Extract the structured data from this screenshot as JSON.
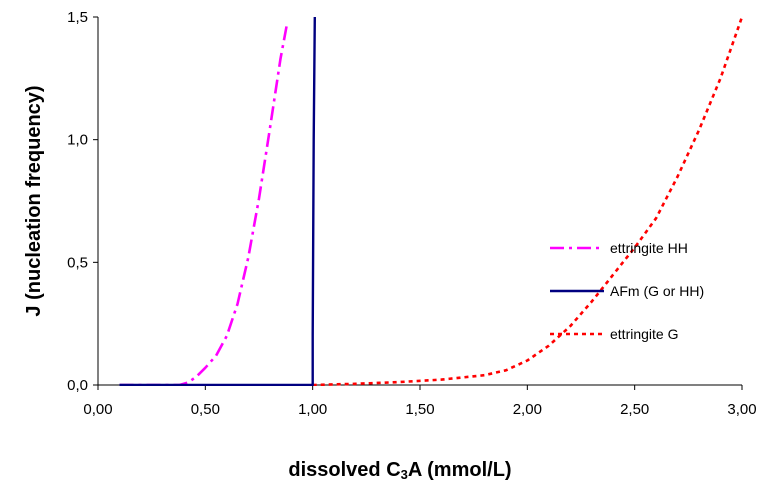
{
  "chart_data": {
    "type": "line",
    "title": "",
    "xlabel_parts": [
      "dissolved C",
      "3",
      "A (mmol/L)"
    ],
    "ylabel": "J (nucleation frequency)",
    "xlim": [
      0,
      3
    ],
    "ylim": [
      0,
      1.5
    ],
    "x_ticks": [
      0,
      0.5,
      1,
      1.5,
      2,
      2.5,
      3
    ],
    "x_tick_labels": [
      "0,00",
      "0,50",
      "1,00",
      "1,50",
      "2,00",
      "2,50",
      "3,00"
    ],
    "y_ticks": [
      0,
      0.5,
      1,
      1.5
    ],
    "y_tick_labels": [
      "0,0",
      "0,5",
      "1,0",
      "1,5"
    ],
    "grid": false,
    "legend_position": "right",
    "series": [
      {
        "name": "ettringite HH",
        "color": "#ff00ff",
        "dash": "dashdot",
        "x": [
          0.1,
          0.2,
          0.3,
          0.38,
          0.42,
          0.46,
          0.5,
          0.55,
          0.6,
          0.65,
          0.7,
          0.75,
          0.8,
          0.85,
          0.88
        ],
        "y": [
          0,
          0,
          0,
          0,
          0.01,
          0.035,
          0.07,
          0.12,
          0.2,
          0.33,
          0.52,
          0.76,
          1.04,
          1.33,
          1.47
        ]
      },
      {
        "name": "AFm (G or HH)",
        "color": "#000080",
        "dash": "solid",
        "x": [
          0.1,
          0.5,
          0.995,
          1.0,
          1.0,
          1.005,
          1.01
        ],
        "y": [
          0,
          0,
          0,
          0,
          0.2,
          1.0,
          1.5
        ]
      },
      {
        "name": "ettringite G",
        "color": "#ff0000",
        "dash": "dot",
        "x": [
          1.0,
          1.2,
          1.4,
          1.6,
          1.8,
          1.9,
          2.0,
          2.1,
          2.2,
          2.3,
          2.4,
          2.5,
          2.6,
          2.7,
          2.8,
          2.9,
          3.0
        ],
        "y": [
          0,
          0.005,
          0.012,
          0.022,
          0.04,
          0.06,
          0.1,
          0.16,
          0.24,
          0.34,
          0.45,
          0.56,
          0.68,
          0.85,
          1.04,
          1.25,
          1.5
        ]
      }
    ]
  }
}
